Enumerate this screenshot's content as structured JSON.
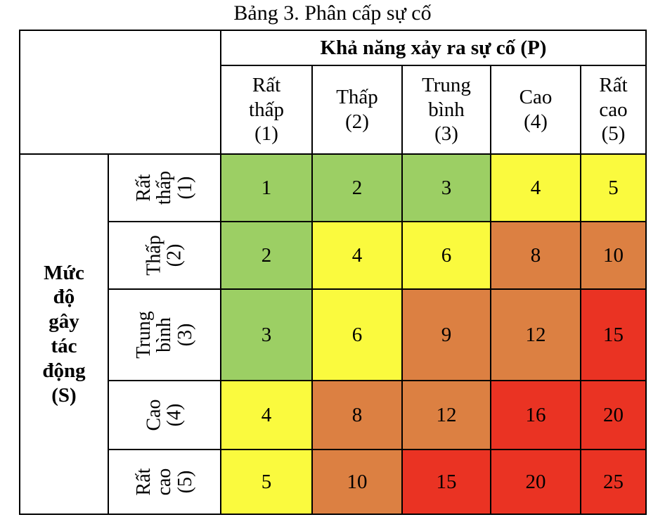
{
  "caption": "Bảng 3. Phân cấp sự cố",
  "p_header": "Khả năng xảy ra sự cố (P)",
  "s_header": [
    "Mức",
    "độ",
    "gây",
    "tác",
    "động",
    "(S)"
  ],
  "p_columns": [
    [
      "Rất",
      "thấp",
      "(1)"
    ],
    [
      "Thấp",
      "(2)"
    ],
    [
      "Trung",
      "bình",
      "(3)"
    ],
    [
      "Cao",
      "(4)"
    ],
    [
      "Rất",
      "cao",
      "(5)"
    ]
  ],
  "s_rows": [
    [
      "Rất",
      "thấp",
      "(1)"
    ],
    [
      "Thấp",
      "(2)"
    ],
    [
      "Trung",
      "bình",
      "(3)"
    ],
    [
      "Cao",
      "(4)"
    ],
    [
      "Rất",
      "cao",
      "(5)"
    ]
  ],
  "matrix": [
    [
      "1",
      "2",
      "3",
      "4",
      "5"
    ],
    [
      "2",
      "4",
      "6",
      "8",
      "10"
    ],
    [
      "3",
      "6",
      "9",
      "12",
      "15"
    ],
    [
      "4",
      "8",
      "12",
      "16",
      "20"
    ],
    [
      "5",
      "10",
      "15",
      "20",
      "25"
    ]
  ],
  "colors": {
    "green": "#9ccf64",
    "yellow": "#fafa3e",
    "orange": "#dc8042",
    "red": "#ea3323"
  },
  "matrix_colors": [
    [
      "green",
      "green",
      "green",
      "yellow",
      "yellow"
    ],
    [
      "green",
      "yellow",
      "yellow",
      "orange",
      "orange"
    ],
    [
      "green",
      "yellow",
      "orange",
      "orange",
      "red"
    ],
    [
      "yellow",
      "orange",
      "orange",
      "red",
      "red"
    ],
    [
      "yellow",
      "orange",
      "red",
      "red",
      "red"
    ]
  ]
}
